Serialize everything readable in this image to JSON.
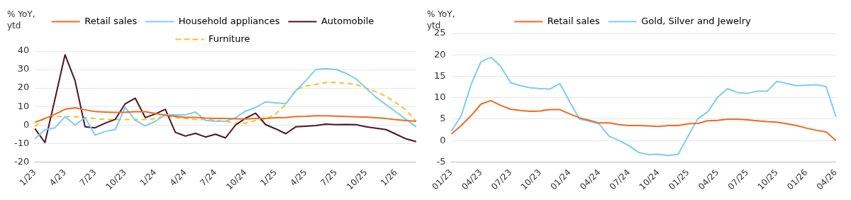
{
  "chart_data": [
    {
      "type": "line",
      "ylabel": "% YoY, ytd",
      "categories": [
        "1/23",
        null,
        null,
        "4/23",
        null,
        null,
        "7/23",
        null,
        null,
        "10/23",
        null,
        null,
        "1/24",
        null,
        null,
        "4/24",
        null,
        null,
        "7/24",
        null,
        null,
        "10/24",
        null,
        null,
        "1/25",
        null,
        null,
        "4/25",
        null,
        null,
        "7/25",
        null,
        null,
        "10/25",
        null,
        null,
        "1/26",
        null,
        null
      ],
      "series": [
        {
          "name": "Retail sales",
          "color": "#f06a1e",
          "values": [
            1.5,
            3.5,
            5.8,
            8.5,
            9.3,
            8.2,
            7.3,
            7.0,
            6.8,
            6.9,
            7.2,
            7.2,
            6.2,
            5.3,
            4.7,
            4.1,
            4.1,
            3.7,
            3.5,
            3.5,
            3.4,
            3.3,
            3.5,
            3.5,
            3.9,
            4.0,
            4.6,
            4.7,
            5.0,
            5.0,
            4.8,
            4.6,
            4.4,
            4.3,
            3.9,
            3.5,
            2.9,
            2.4,
            2.0
          ]
        },
        {
          "name": "Household appliances",
          "color": "#7dcdf0",
          "values": [
            -7.5,
            -2.5,
            -1.5,
            4.5,
            0,
            4,
            -5.5,
            -3.5,
            -2.5,
            9.5,
            2.5,
            -0.5,
            2,
            5.5,
            5.5,
            5.5,
            7,
            2.5,
            2,
            2,
            4,
            7.5,
            9.5,
            12.5,
            12,
            11.5,
            18.5,
            24,
            30,
            30.5,
            30,
            28,
            25,
            20,
            15,
            11,
            7,
            3,
            -1
          ]
        },
        {
          "name": "Automobile",
          "color": "#4a1526",
          "values": [
            -2,
            -9.5,
            14,
            38,
            24,
            -1,
            -1.5,
            1,
            3,
            11.5,
            14.5,
            4,
            6,
            8.5,
            -4,
            -6,
            -4.5,
            -6.5,
            -5,
            -7,
            0,
            3.7,
            6.4,
            0.2,
            -2.1,
            -4.7,
            -1,
            -0.7,
            -0.3,
            0.5,
            0.2,
            0.3,
            0.2,
            -1,
            -1.7,
            -2.5,
            -5,
            -7.5,
            -9
          ]
        },
        {
          "name": "Furniture",
          "color": "#f5c02a",
          "line_style": "dashed",
          "values": [
            -1,
            4,
            4.5,
            4.5,
            4.5,
            4,
            3.5,
            3,
            3,
            3,
            3,
            3,
            3.5,
            5,
            4,
            3.5,
            3,
            3,
            2.5,
            2,
            1,
            1,
            2.5,
            3,
            6,
            11,
            19,
            21,
            22,
            23,
            23,
            22.5,
            22,
            20,
            18,
            15.5,
            12,
            8,
            2
          ]
        }
      ],
      "ylim": [
        -20,
        40
      ],
      "yticks": [
        -20,
        -10,
        0,
        10,
        20,
        30,
        40
      ],
      "grid": "y",
      "legend": "top",
      "marker": "none",
      "line_style": "solid"
    },
    {
      "type": "line",
      "ylabel": "% YoY, ytd",
      "categories": [
        "01/23",
        null,
        null,
        "04/23",
        null,
        null,
        "07/23",
        null,
        null,
        "10/23",
        null,
        null,
        "01/24",
        null,
        null,
        "04/24",
        null,
        null,
        "07/24",
        null,
        null,
        "10/24",
        null,
        null,
        "01/25",
        null,
        null,
        "04/25",
        null,
        null,
        "07/25",
        null,
        null,
        "10/25",
        null,
        null,
        "01/26",
        null,
        null,
        "04/26"
      ],
      "series": [
        {
          "name": "Retail sales",
          "color": "#f06a1e",
          "values": [
            1.5,
            3.5,
            5.8,
            8.5,
            9.3,
            8.2,
            7.3,
            7.0,
            6.8,
            6.9,
            7.2,
            7.2,
            6.2,
            5.3,
            4.7,
            4.1,
            4.1,
            3.7,
            3.5,
            3.5,
            3.4,
            3.3,
            3.5,
            3.5,
            3.9,
            4.0,
            4.6,
            4.7,
            5.0,
            5.0,
            4.8,
            4.6,
            4.4,
            4.3,
            3.9,
            3.5,
            2.9,
            2.4,
            2.0,
            0
          ]
        },
        {
          "name": "Gold, Silver and Jewelry",
          "color": "#7dcdf0",
          "values": [
            2.2,
            5.8,
            13.1,
            18.4,
            19.4,
            17.3,
            13.5,
            12.8,
            12.3,
            12.1,
            12.0,
            13.3,
            9,
            5,
            4.5,
            3.8,
            1.0,
            0,
            -1.2,
            -2.8,
            -3.3,
            -3.2,
            -3.5,
            -3.2,
            1,
            5.1,
            6.7,
            10.1,
            12.1,
            11.2,
            11,
            11.5,
            11.5,
            13.8,
            13.3,
            12.8,
            12.9,
            13.0,
            12.6,
            5.5
          ]
        }
      ],
      "ylim": [
        -5,
        25
      ],
      "yticks": [
        -5,
        0,
        5,
        10,
        15,
        20,
        25
      ],
      "grid": "y",
      "legend": "top",
      "marker": "none",
      "line_style": "solid"
    }
  ]
}
